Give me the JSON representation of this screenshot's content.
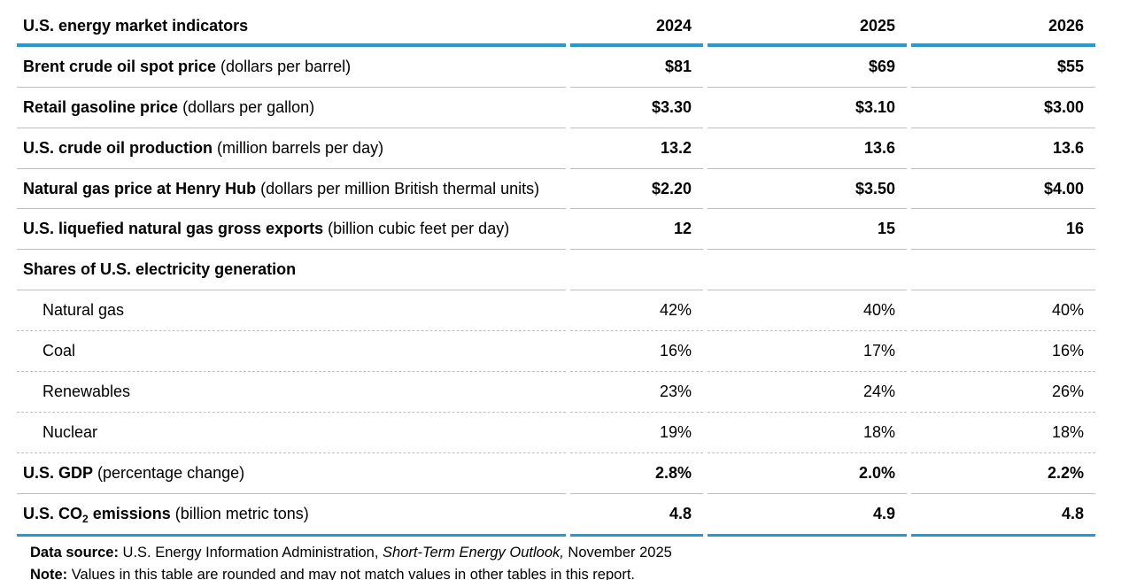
{
  "title": "U.S. energy market indicators",
  "columns": [
    "2024",
    "2025",
    "2026"
  ],
  "rows": [
    {
      "label_bold": "Brent crude oil spot price",
      "label_note": " (dollars per barrel)",
      "values": [
        "$81",
        "$69",
        "$55"
      ],
      "bold_values": true,
      "separator": "solid"
    },
    {
      "label_bold": "Retail gasoline price",
      "label_note": " (dollars per gallon)",
      "values": [
        "$3.30",
        "$3.10",
        "$3.00"
      ],
      "bold_values": true,
      "separator": "solid"
    },
    {
      "label_bold": "U.S. crude oil production",
      "label_note": " (million barrels per day)",
      "values": [
        "13.2",
        "13.6",
        "13.6"
      ],
      "bold_values": true,
      "separator": "solid"
    },
    {
      "label_bold": "Natural gas price at Henry Hub",
      "label_note": " (dollars per million British thermal units)",
      "values": [
        "$2.20",
        "$3.50",
        "$4.00"
      ],
      "bold_values": true,
      "separator": "solid"
    },
    {
      "label_bold": "U.S. liquefied natural gas gross exports",
      "label_note": " (billion cubic feet per day)",
      "values": [
        "12",
        "15",
        "16"
      ],
      "bold_values": true,
      "separator": "solid"
    },
    {
      "label_bold": "Shares of U.S. electricity generation",
      "label_note": "",
      "values": [
        "",
        "",
        ""
      ],
      "bold_values": false,
      "separator": "solid"
    },
    {
      "label_plain": "Natural gas",
      "indent": true,
      "values": [
        "42%",
        "40%",
        "40%"
      ],
      "bold_values": false,
      "separator": "dotted"
    },
    {
      "label_plain": "Coal",
      "indent": true,
      "values": [
        "16%",
        "17%",
        "16%"
      ],
      "bold_values": false,
      "separator": "dotted"
    },
    {
      "label_plain": "Renewables",
      "indent": true,
      "values": [
        "23%",
        "24%",
        "26%"
      ],
      "bold_values": false,
      "separator": "dotted"
    },
    {
      "label_plain": "Nuclear",
      "indent": true,
      "values": [
        "19%",
        "18%",
        "18%"
      ],
      "bold_values": false,
      "separator": "dotted"
    },
    {
      "label_bold": "U.S. GDP",
      "label_note": " (percentage change)",
      "values": [
        "2.8%",
        "2.0%",
        "2.2%"
      ],
      "bold_values": true,
      "separator": "solid"
    },
    {
      "label_bold": "U.S. CO",
      "label_sub": "2",
      "label_bold_2": " emissions",
      "label_note": " (billion metric tons)",
      "values": [
        "4.8",
        "4.9",
        "4.8"
      ],
      "bold_values": true,
      "separator": "blue"
    }
  ],
  "footer": {
    "data_source_segments": [
      {
        "text": "Data source:",
        "bold": true
      },
      {
        "text": " U.S. Energy Information Administration, "
      },
      {
        "text": "Short-Term Energy Outlook,",
        "italic": true
      },
      {
        "text": " November 2025"
      }
    ],
    "note_segments": [
      {
        "text": "Note:",
        "bold": true
      },
      {
        "text": " Values in this table are rounded and may not match values in other tables in this report."
      }
    ]
  },
  "colors": {
    "accent_blue": "#1f9bd7",
    "separator_gray": "#bfbfbf",
    "text": "#000000"
  }
}
